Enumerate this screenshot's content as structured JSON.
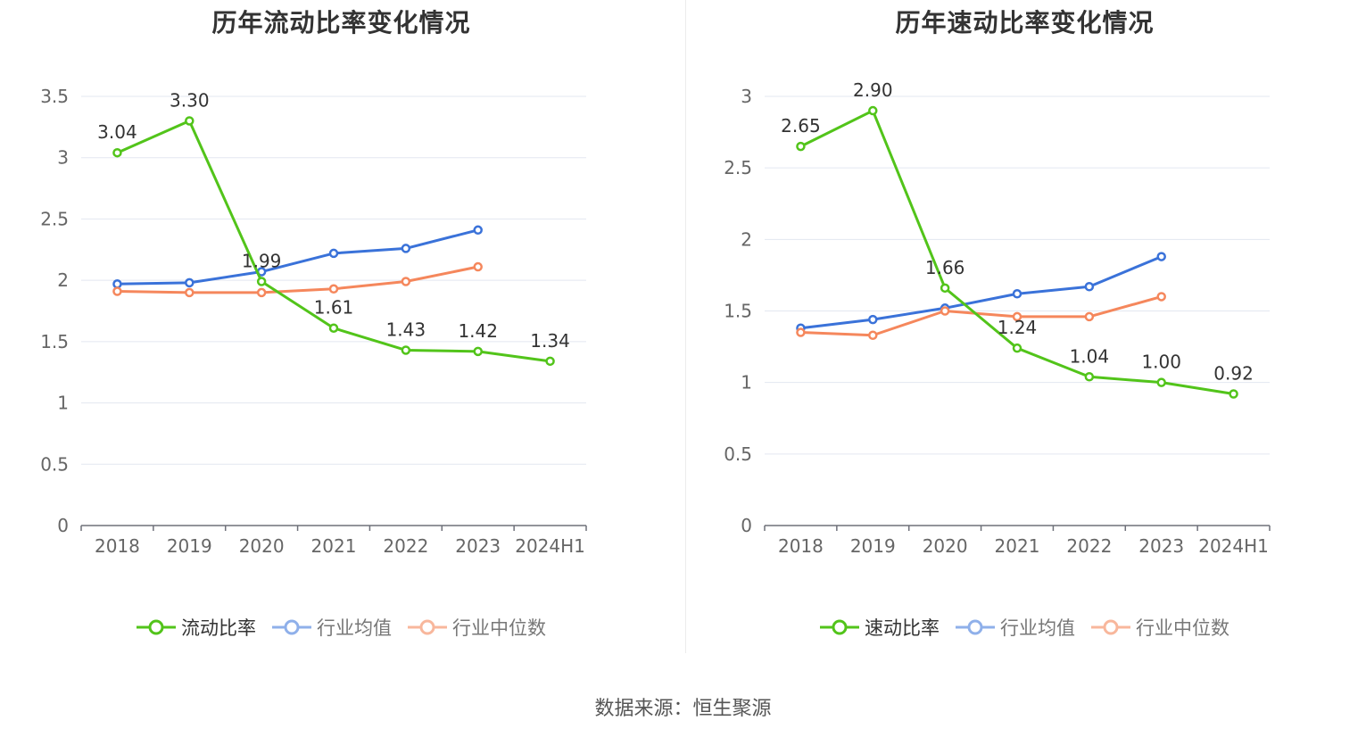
{
  "source": "数据来源：恒生聚源",
  "chart_data": [
    {
      "type": "line",
      "title": "历年流动比率变化情况",
      "categories": [
        "2018",
        "2019",
        "2020",
        "2021",
        "2022",
        "2023",
        "2024H1"
      ],
      "ylim": [
        0,
        3.5
      ],
      "yticks": [
        0,
        0.5,
        1,
        1.5,
        2,
        2.5,
        3,
        3.5
      ],
      "ytick_labels": [
        "0",
        "0.5",
        "1",
        "1.5",
        "2",
        "2.5",
        "3",
        "3.5"
      ],
      "series": [
        {
          "name": "流动比率",
          "color": "#52c41a",
          "values": [
            3.04,
            3.3,
            1.99,
            1.61,
            1.43,
            1.42,
            1.34
          ],
          "labels": [
            "3.04",
            "3.30",
            "1.99",
            "1.61",
            "1.43",
            "1.42",
            "1.34"
          ]
        },
        {
          "name": "行业均值",
          "color": "#3a72d9",
          "values": [
            1.97,
            1.98,
            2.07,
            2.22,
            2.26,
            2.41,
            null
          ]
        },
        {
          "name": "行业中位数",
          "color": "#f5875c",
          "values": [
            1.91,
            1.9,
            1.9,
            1.93,
            1.99,
            2.11,
            null
          ]
        }
      ]
    },
    {
      "type": "line",
      "title": "历年速动比率变化情况",
      "categories": [
        "2018",
        "2019",
        "2020",
        "2021",
        "2022",
        "2023",
        "2024H1"
      ],
      "ylim": [
        0,
        3
      ],
      "yticks": [
        0,
        0.5,
        1,
        1.5,
        2,
        2.5,
        3
      ],
      "ytick_labels": [
        "0",
        "0.5",
        "1",
        "1.5",
        "2",
        "2.5",
        "3"
      ],
      "series": [
        {
          "name": "速动比率",
          "color": "#52c41a",
          "values": [
            2.65,
            2.9,
            1.66,
            1.24,
            1.04,
            1.0,
            0.92
          ],
          "labels": [
            "2.65",
            "2.90",
            "1.66",
            "1.24",
            "1.04",
            "1.00",
            "0.92"
          ]
        },
        {
          "name": "行业均值",
          "color": "#3a72d9",
          "values": [
            1.38,
            1.44,
            1.52,
            1.62,
            1.67,
            1.88,
            null
          ]
        },
        {
          "name": "行业中位数",
          "color": "#f5875c",
          "values": [
            1.35,
            1.33,
            1.5,
            1.46,
            1.46,
            1.6,
            null
          ]
        }
      ]
    }
  ]
}
